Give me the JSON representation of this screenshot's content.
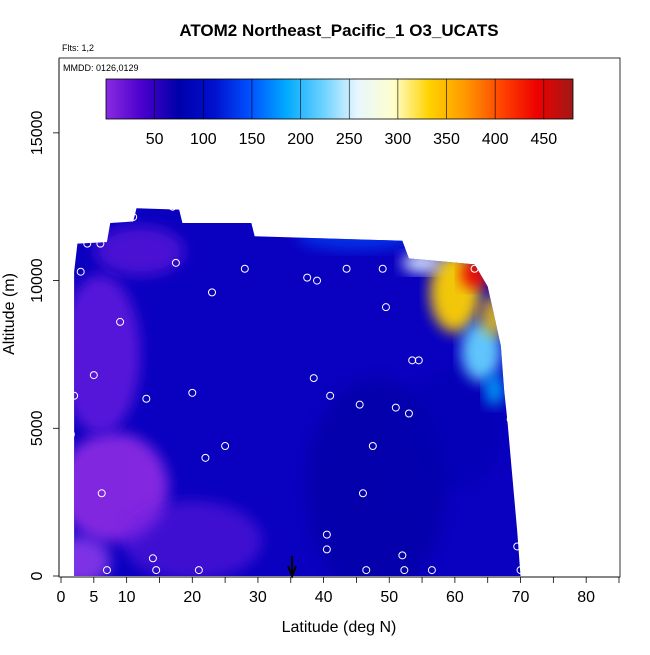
{
  "chart_data": {
    "type": "heatmap",
    "title": "ATOM2 Northeast_Pacific_1 O3_UCATS",
    "subtitle_flights": "Flts: 1,2",
    "subtitle_dates": "MMDD: 0126,0129",
    "xlabel": "Latitude (deg N)",
    "ylabel": "Altitude (m)",
    "xlim": [
      0,
      85
    ],
    "ylim": [
      0,
      17500
    ],
    "x_ticks": [
      0,
      5,
      10,
      20,
      30,
      40,
      50,
      60,
      70,
      80
    ],
    "y_ticks": [
      0,
      5000,
      10000,
      15000
    ],
    "colorbar": {
      "range": [
        0,
        480
      ],
      "ticks": [
        50,
        100,
        150,
        200,
        250,
        300,
        350,
        400,
        450
      ],
      "colors": [
        "#8a2be2",
        "#4b00cc",
        "#0000aa",
        "#0010cc",
        "#0050ff",
        "#00a8ff",
        "#66d0ff",
        "#e8f6ff",
        "#ffffcc",
        "#ffd200",
        "#ff9900",
        "#ff4400",
        "#ee0000",
        "#a01818"
      ]
    },
    "upper_boundary": [
      [
        2,
        10300
      ],
      [
        2.5,
        11250
      ],
      [
        7,
        11300
      ],
      [
        7.5,
        11950
      ],
      [
        11,
        12000
      ],
      [
        11.5,
        12450
      ],
      [
        18,
        12400
      ],
      [
        18.5,
        11950
      ],
      [
        29,
        11950
      ],
      [
        29.5,
        11500
      ],
      [
        52,
        11350
      ],
      [
        53,
        10750
      ],
      [
        63,
        10550
      ],
      [
        65,
        9800
      ],
      [
        66,
        8800
      ],
      [
        67,
        7800
      ],
      [
        67.5,
        6300
      ],
      [
        68,
        5250
      ],
      [
        69.5,
        1500
      ],
      [
        70,
        0
      ]
    ],
    "profile_points": [
      [
        0.5,
        200
      ],
      [
        0.8,
        1400
      ],
      [
        1.5,
        4800
      ],
      [
        2,
        6100
      ],
      [
        3,
        10300
      ],
      [
        4,
        11250
      ],
      [
        6,
        11250
      ],
      [
        5,
        6800
      ],
      [
        6.2,
        2800
      ],
      [
        7,
        200
      ],
      [
        9,
        8600
      ],
      [
        11,
        12150
      ],
      [
        13,
        6000
      ],
      [
        14,
        600
      ],
      [
        14.5,
        200
      ],
      [
        17,
        12500
      ],
      [
        17.5,
        10600
      ],
      [
        20,
        6200
      ],
      [
        21,
        200
      ],
      [
        22,
        4000
      ],
      [
        23,
        9600
      ],
      [
        25,
        4400
      ],
      [
        28,
        10400
      ],
      [
        37.5,
        10100
      ],
      [
        38.5,
        6700
      ],
      [
        39,
        10000
      ],
      [
        40.5,
        1400
      ],
      [
        40.5,
        900
      ],
      [
        41,
        6100
      ],
      [
        43.5,
        10400
      ],
      [
        45.5,
        5800
      ],
      [
        46,
        2800
      ],
      [
        46.5,
        200
      ],
      [
        47.5,
        4400
      ],
      [
        49,
        10400
      ],
      [
        49.5,
        9100
      ],
      [
        51,
        5700
      ],
      [
        52,
        700
      ],
      [
        52.3,
        200
      ],
      [
        53,
        5500
      ],
      [
        53.5,
        7300
      ],
      [
        54.5,
        7300
      ],
      [
        56.5,
        200
      ],
      [
        63,
        10400
      ],
      [
        68.5,
        5300
      ],
      [
        69.5,
        1000
      ],
      [
        70,
        200
      ]
    ],
    "annotation_arrow_x": 35.2
  }
}
